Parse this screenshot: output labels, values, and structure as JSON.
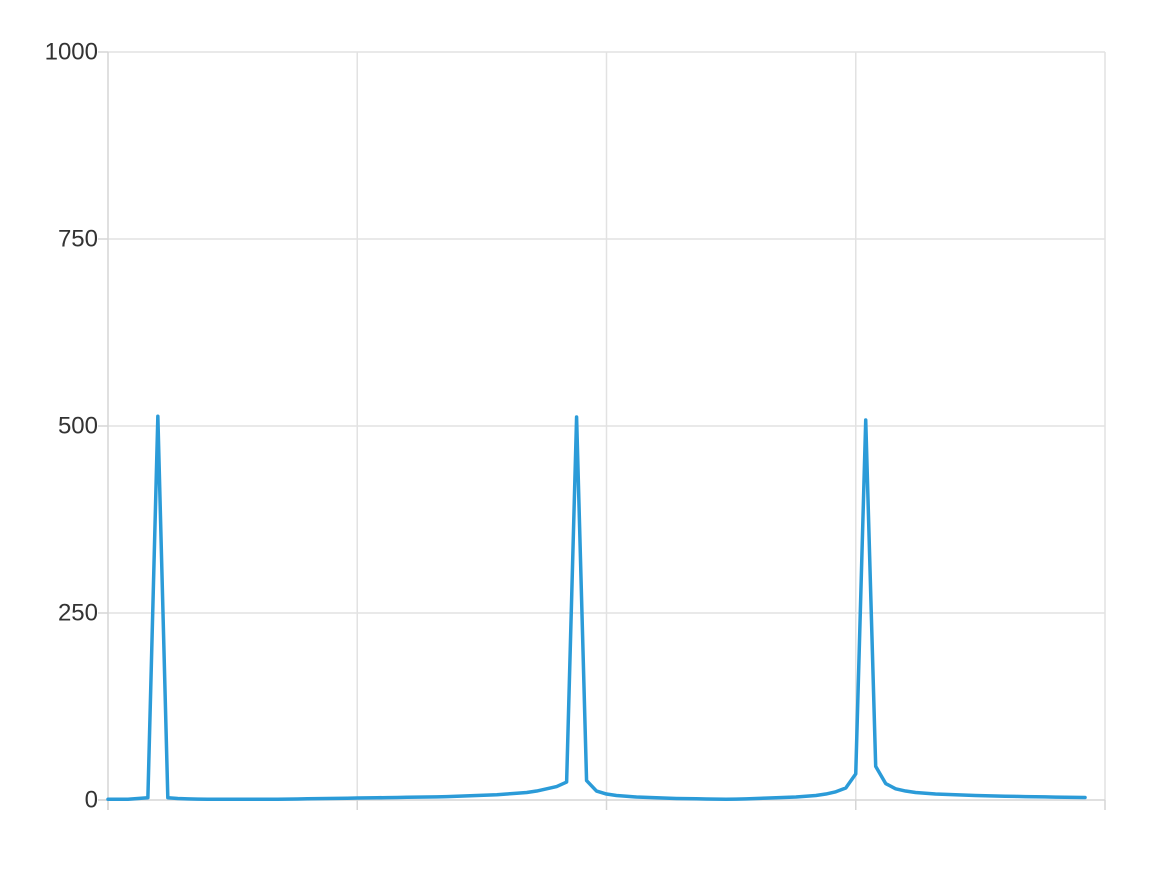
{
  "chart_data": {
    "type": "line",
    "title": "",
    "xlabel": "",
    "ylabel": "",
    "xlim": [
      0,
      100
    ],
    "ylim": [
      0,
      1000
    ],
    "x_grid_count": 4,
    "yticks": [
      {
        "value": 0,
        "label": "0"
      },
      {
        "value": 250,
        "label": "250"
      },
      {
        "value": 500,
        "label": "500"
      },
      {
        "value": 750,
        "label": "750"
      },
      {
        "value": 1000,
        "label": "1000"
      }
    ],
    "grid": true,
    "legend": "none",
    "series": [
      {
        "color": "#2b9bd8",
        "x": [
          0,
          1,
          2,
          3,
          4,
          5,
          6,
          7,
          8,
          9,
          10,
          11,
          12,
          13,
          14,
          15,
          16,
          17,
          18,
          19,
          20,
          21,
          22,
          23,
          24,
          25,
          26,
          27,
          28,
          29,
          30,
          31,
          32,
          33,
          34,
          35,
          36,
          37,
          38,
          39,
          40,
          41,
          42,
          43,
          44,
          45,
          46,
          47,
          48,
          49,
          50,
          51,
          52,
          53,
          54,
          55,
          56,
          57,
          58,
          59,
          60,
          61,
          62,
          63,
          64,
          65,
          66,
          67,
          68,
          69,
          70,
          71,
          72,
          73,
          74,
          75,
          76,
          77,
          78,
          79,
          80,
          81,
          82,
          83,
          84,
          85,
          86,
          87,
          88,
          89,
          90,
          91,
          92,
          93,
          94,
          95,
          96,
          97,
          98
        ],
        "values": [
          1,
          1,
          1,
          2,
          3,
          513,
          3,
          2,
          1.5,
          1.2,
          1,
          1,
          1,
          1,
          1,
          1,
          1,
          1,
          1.2,
          1.4,
          1.6,
          1.8,
          2,
          2.2,
          2.4,
          2.6,
          2.8,
          3,
          3.2,
          3.4,
          3.6,
          3.8,
          4,
          4.2,
          4.5,
          5,
          5.5,
          6,
          6.5,
          7,
          8,
          9,
          10,
          12,
          15,
          18,
          24,
          512,
          26,
          12,
          8,
          6,
          5,
          4,
          3.5,
          3,
          2.5,
          2,
          1.8,
          1.6,
          1.4,
          1.2,
          1,
          1.2,
          1.5,
          2,
          2.5,
          3,
          3.5,
          4,
          5,
          6,
          8,
          11,
          16,
          35,
          508,
          45,
          22,
          15,
          12,
          10,
          9,
          8,
          7.5,
          7,
          6.5,
          6,
          5.7,
          5.4,
          5.1,
          4.8,
          4.5,
          4.3,
          4.1,
          3.9,
          3.7,
          3.5,
          3.3
        ]
      }
    ]
  }
}
